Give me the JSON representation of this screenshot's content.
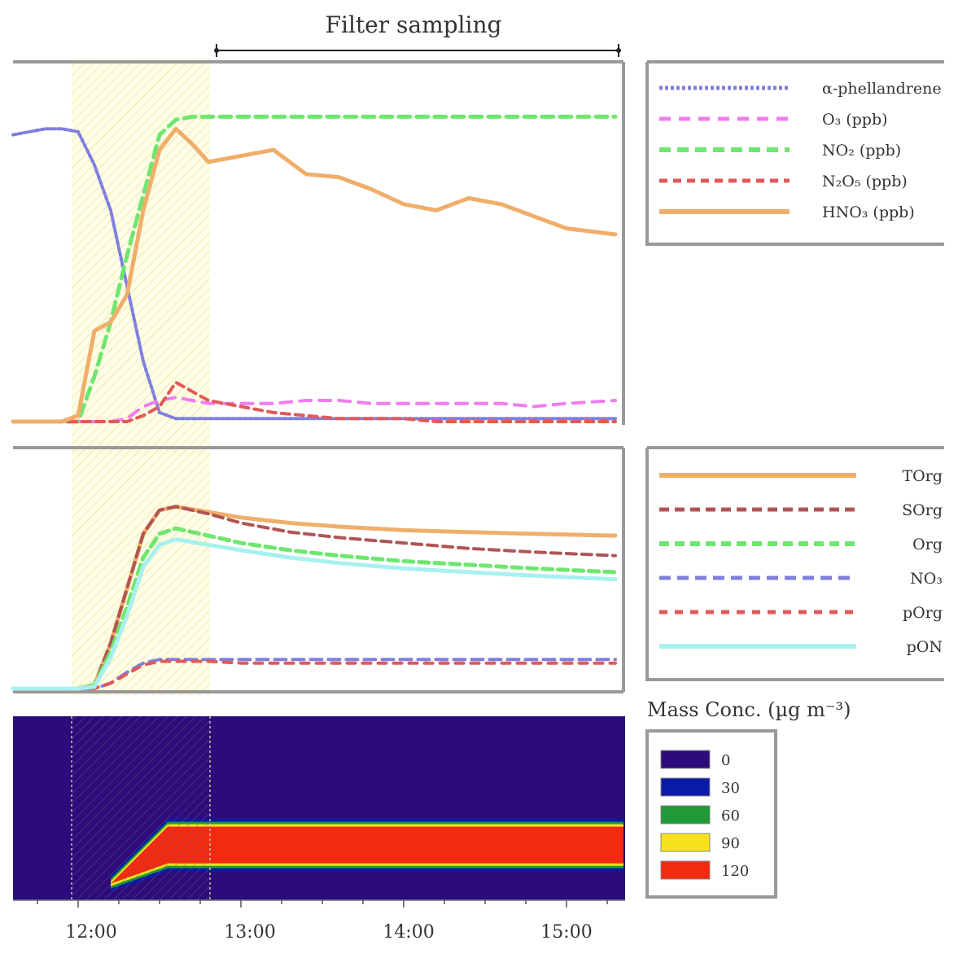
{
  "title": "Filter sampling",
  "x_ticks": [
    "12:00",
    "13:00",
    "14:00",
    "15:00"
  ],
  "colorbar_title": "Mass Conc. (µg m⁻³)",
  "colors": {
    "alpha_phellandrene": "#7f7fdf",
    "o3": "#f07cf0",
    "no2": "#6fe66f",
    "n2o5": "#e05a5a",
    "hno3": "#efae6a",
    "tot_org": "#efae6a",
    "soa": "#b05555",
    "org": "#6fe66f",
    "no3": "#7f7fdf",
    "ponit": "#e05a5a",
    "pon": "#a8f0f0",
    "highlight": "#fdfad0",
    "contour_bg": "#2d0b7a"
  },
  "chart_data": [
    {
      "type": "line",
      "x": [
        11.6,
        11.8,
        11.9,
        12.0,
        12.1,
        12.2,
        12.3,
        12.4,
        12.5,
        12.6,
        12.7,
        12.8,
        13.0,
        13.2,
        13.4,
        13.6,
        13.8,
        14.0,
        14.2,
        14.4,
        14.6,
        14.8,
        15.0,
        15.3
      ],
      "series": [
        {
          "name": "α-phellandrene",
          "values": [
            95,
            97,
            97,
            96,
            85,
            70,
            45,
            20,
            3,
            1,
            1,
            1,
            1,
            1,
            1,
            1,
            1,
            1,
            1,
            1,
            1,
            1,
            1,
            1
          ]
        },
        {
          "name": "O₃ (ppb)",
          "values": [
            0,
            0,
            0,
            0,
            0,
            0,
            1,
            5,
            7,
            8,
            7,
            6,
            6,
            6,
            7,
            7,
            6,
            6,
            6,
            6,
            6,
            5,
            6,
            7
          ]
        },
        {
          "name": "NO₂ (ppb)",
          "values": [
            0,
            0,
            0,
            0,
            15,
            33,
            55,
            75,
            95,
            100,
            101,
            101,
            101,
            101,
            101,
            101,
            101,
            101,
            101,
            101,
            101,
            101,
            101,
            101
          ]
        },
        {
          "name": "N₂O₅ (ppb)",
          "values": [
            0,
            0,
            0,
            0,
            0,
            0,
            0,
            2,
            5,
            13,
            10,
            7,
            5,
            3,
            2,
            1,
            1,
            1,
            0,
            0,
            0,
            0,
            0,
            0
          ]
        },
        {
          "name": "HNO₃ (ppb)",
          "values": [
            0,
            0,
            0,
            2,
            30,
            33,
            42,
            70,
            90,
            97,
            92,
            86,
            88,
            90,
            82,
            81,
            77,
            72,
            70,
            74,
            72,
            68,
            64,
            62
          ]
        }
      ],
      "xlim": [
        11.6,
        15.35
      ],
      "ylim": [
        0,
        110
      ]
    },
    {
      "type": "line",
      "x": [
        11.6,
        11.9,
        12.0,
        12.1,
        12.2,
        12.3,
        12.4,
        12.5,
        12.6,
        12.8,
        13.0,
        13.3,
        13.6,
        14.0,
        14.4,
        14.8,
        15.3
      ],
      "series": [
        {
          "name": "TOrg",
          "values": [
            0,
            0,
            0,
            2,
            25,
            55,
            85,
            98,
            100,
            97,
            94,
            91,
            89,
            87,
            86,
            85,
            84
          ]
        },
        {
          "name": "SOrg",
          "values": [
            0,
            0,
            0,
            2,
            25,
            55,
            85,
            98,
            100,
            96,
            91,
            86,
            83,
            80,
            77,
            75,
            73
          ]
        },
        {
          "name": "Org",
          "values": [
            0,
            0,
            0,
            2,
            20,
            45,
            72,
            85,
            88,
            84,
            80,
            76,
            73,
            70,
            68,
            66,
            64
          ]
        },
        {
          "name": "NO₃",
          "values": [
            0,
            0,
            0,
            0,
            3,
            9,
            14,
            16,
            16,
            16,
            16,
            16,
            16,
            16,
            16,
            16,
            16
          ]
        },
        {
          "name": "pOrg",
          "values": [
            0,
            0,
            0,
            0,
            3,
            8,
            13,
            15,
            15,
            15,
            14,
            14,
            14,
            14,
            14,
            14,
            14
          ]
        },
        {
          "name": "pON",
          "values": [
            0,
            0,
            0,
            1,
            17,
            40,
            67,
            79,
            82,
            79,
            76,
            72,
            69,
            66,
            64,
            62,
            60
          ]
        }
      ],
      "xlim": [
        11.6,
        15.35
      ],
      "ylim": [
        0,
        110
      ]
    },
    {
      "type": "heatmap",
      "legend_levels": [
        "0",
        "30",
        "60",
        "90",
        "120"
      ],
      "level_colors": [
        "#2d0b7a",
        "#0a1aa8",
        "#1f9a35",
        "#f5e21a",
        "#f22a10"
      ],
      "band": [
        {
          "x": 12.2,
          "y_low": 0.09,
          "y_high": 0.09
        },
        {
          "x": 12.55,
          "y_low": 0.2,
          "y_high": 0.4
        },
        {
          "x": 15.35,
          "y_low": 0.2,
          "y_high": 0.4
        }
      ],
      "xlim": [
        11.6,
        15.35
      ],
      "ylim": [
        0,
        1
      ]
    }
  ]
}
